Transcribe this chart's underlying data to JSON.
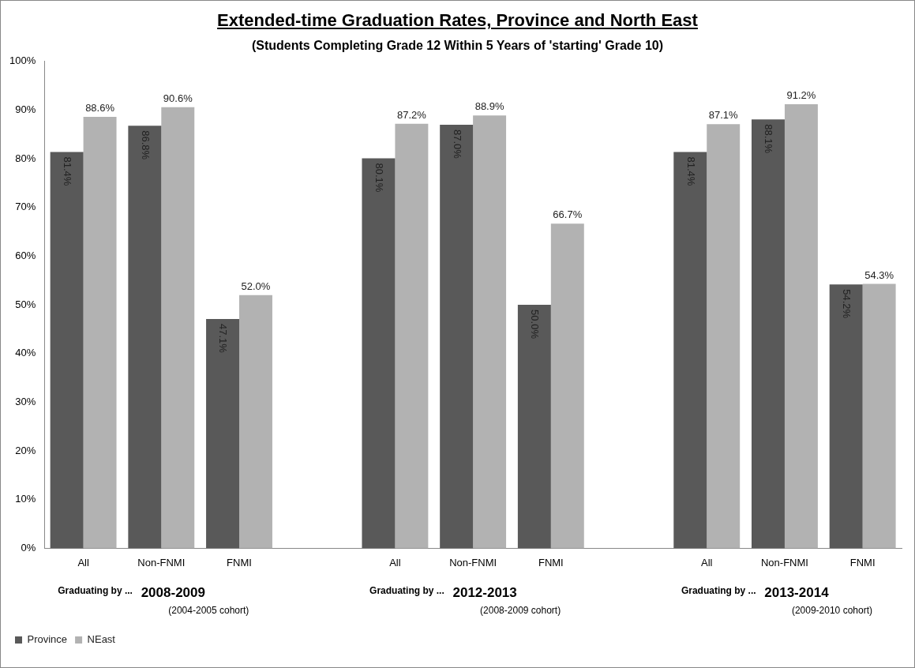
{
  "chart_data": {
    "type": "bar",
    "title": "Extended-time Graduation Rates, Province and North East",
    "subtitle": "(Students Completing Grade 12 Within 5 Years of 'starting' Grade 10)",
    "categories": [
      "All",
      "Non-FNMI",
      "FNMI",
      null,
      "All",
      "Non-FNMI",
      "FNMI",
      null,
      "All",
      "Non-FNMI",
      "FNMI"
    ],
    "series": [
      {
        "name": "Province",
        "color": "#595959",
        "values": [
          81.4,
          86.8,
          47.1,
          null,
          80.1,
          87.0,
          50.0,
          null,
          81.4,
          88.1,
          54.2
        ],
        "value_labels": [
          "81.4%",
          "86.8%",
          "47.1%",
          null,
          "80.1%",
          "87.0%",
          "50.0%",
          null,
          "81.4%",
          "88.1%",
          "54.2%"
        ]
      },
      {
        "name": "NEast",
        "color": "#b2b2b2",
        "values": [
          88.6,
          90.6,
          52.0,
          null,
          87.2,
          88.9,
          66.7,
          null,
          87.1,
          91.2,
          54.3
        ],
        "value_labels": [
          "88.6%",
          "90.6%",
          "52.0%",
          null,
          "87.2%",
          "88.9%",
          "66.7%",
          null,
          "87.1%",
          "91.2%",
          "54.3%"
        ]
      }
    ],
    "ylim": [
      0,
      100
    ],
    "yticks": [
      {
        "value": 0,
        "label": "0%"
      },
      {
        "value": 10,
        "label": "10%"
      },
      {
        "value": 20,
        "label": "20%"
      },
      {
        "value": 30,
        "label": "30%"
      },
      {
        "value": 40,
        "label": "40%"
      },
      {
        "value": 50,
        "label": "50%"
      },
      {
        "value": 60,
        "label": "60%"
      },
      {
        "value": 70,
        "label": "70%"
      },
      {
        "value": 80,
        "label": "80%"
      },
      {
        "value": 90,
        "label": "90%"
      },
      {
        "value": 100,
        "label": "100%"
      }
    ],
    "grid": false,
    "legend": "bottom left",
    "annotations": [
      "Graduating by ...",
      "2008-2009",
      "(2004-2005 cohort)",
      "Graduating by ...",
      "2012-2013",
      "(2008-2009 cohort)",
      "Graduating by ...",
      "2013-2014",
      "(2009-2010 cohort)"
    ]
  }
}
